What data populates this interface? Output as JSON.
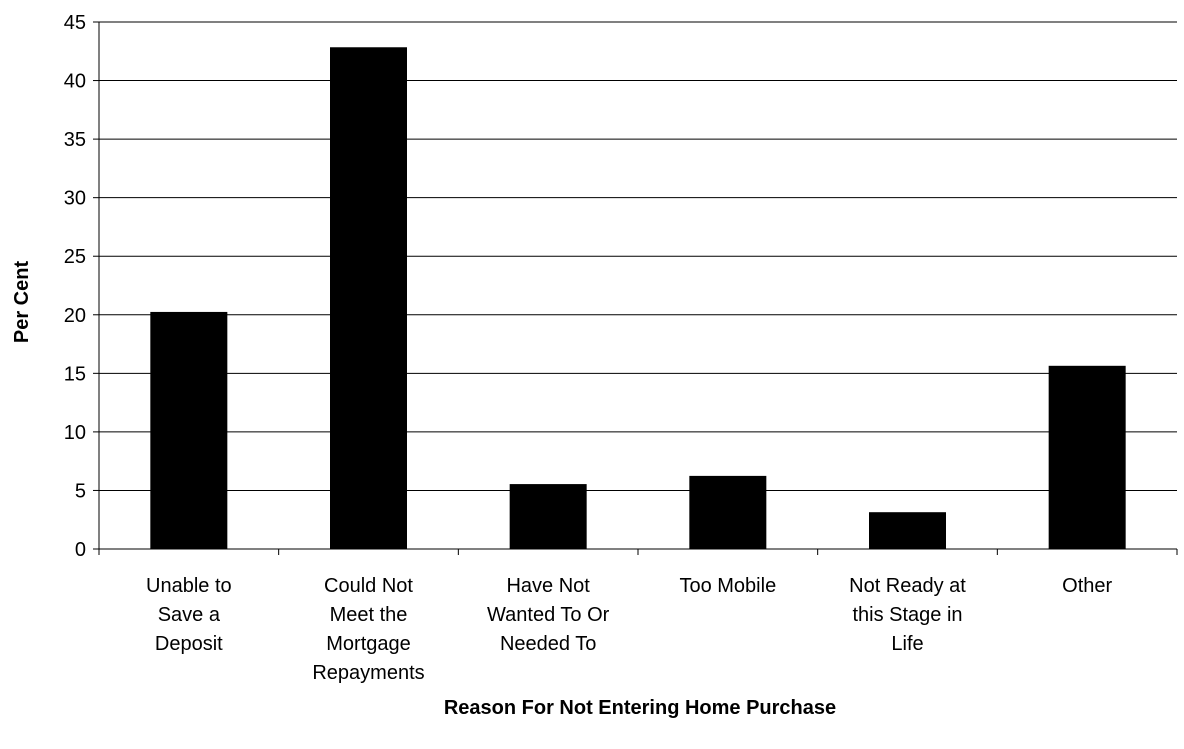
{
  "chart_data": {
    "type": "bar",
    "title": "",
    "xlabel": "Reason For Not Entering Home Purchase",
    "ylabel": "Per Cent",
    "ylim": [
      0,
      45
    ],
    "yticks": [
      0,
      5,
      10,
      15,
      20,
      25,
      30,
      35,
      40,
      45
    ],
    "grid": true,
    "categories": [
      [
        "Unable to",
        "Save a",
        "Deposit"
      ],
      [
        "Could Not",
        "Meet the",
        "Mortgage",
        "Repayments"
      ],
      [
        "Have Not",
        "Wanted To Or",
        "Needed To"
      ],
      [
        "Too Mobile"
      ],
      [
        "Not Ready at",
        "this Stage in",
        "Life"
      ],
      [
        "Other"
      ]
    ],
    "values": [
      20.2,
      42.8,
      5.5,
      6.2,
      3.1,
      15.6
    ],
    "colors": {
      "bar": "#000000",
      "grid": "#000000",
      "background": "#ffffff"
    }
  }
}
